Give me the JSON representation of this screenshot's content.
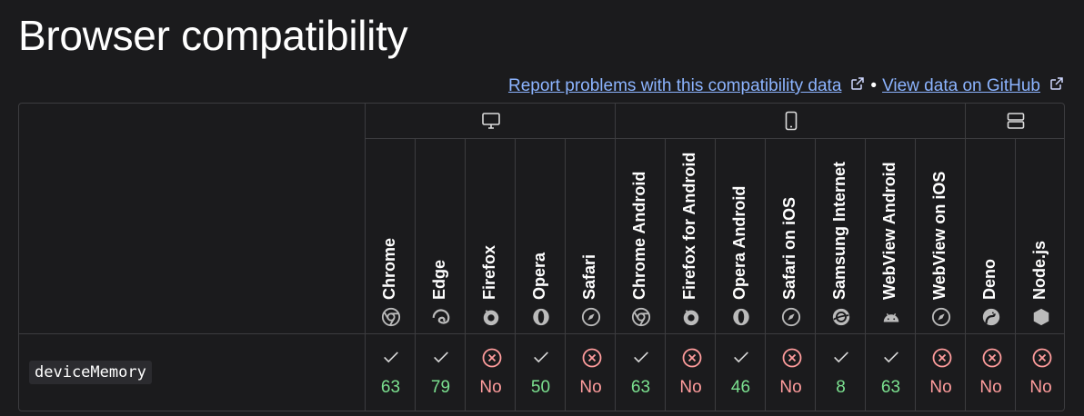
{
  "title": "Browser compatibility",
  "links": {
    "report": "Report problems with this compatibility data",
    "separator": "•",
    "github": "View data on GitHub"
  },
  "groups": [
    {
      "name": "desktop",
      "icon": "desktop-icon"
    },
    {
      "name": "mobile",
      "icon": "mobile-icon"
    },
    {
      "name": "server",
      "icon": "server-icon"
    }
  ],
  "browsers": [
    {
      "name": "Chrome",
      "icon": "chrome-icon",
      "version": "63",
      "supported": true
    },
    {
      "name": "Edge",
      "icon": "edge-icon",
      "version": "79",
      "supported": true
    },
    {
      "name": "Firefox",
      "icon": "firefox-icon",
      "version": "No",
      "supported": false
    },
    {
      "name": "Opera",
      "icon": "opera-icon",
      "version": "50",
      "supported": true
    },
    {
      "name": "Safari",
      "icon": "safari-icon",
      "version": "No",
      "supported": false
    },
    {
      "name": "Chrome Android",
      "icon": "chrome-icon",
      "version": "63",
      "supported": true
    },
    {
      "name": "Firefox for Android",
      "icon": "firefox-icon",
      "version": "No",
      "supported": false
    },
    {
      "name": "Opera Android",
      "icon": "opera-icon",
      "version": "46",
      "supported": true
    },
    {
      "name": "Safari on iOS",
      "icon": "safari-icon",
      "version": "No",
      "supported": false
    },
    {
      "name": "Samsung Internet",
      "icon": "samsung-internet-icon",
      "version": "8",
      "supported": true
    },
    {
      "name": "WebView Android",
      "icon": "android-icon",
      "version": "63",
      "supported": true
    },
    {
      "name": "WebView on iOS",
      "icon": "safari-icon",
      "version": "No",
      "supported": false
    },
    {
      "name": "Deno",
      "icon": "deno-icon",
      "version": "No",
      "supported": false
    },
    {
      "name": "Node.js",
      "icon": "nodejs-icon",
      "version": "No",
      "supported": false
    }
  ],
  "feature": "deviceMemory",
  "colors": {
    "background": "#1b1b1d",
    "link": "#8cb4ff",
    "supported": "#7be08f",
    "unsupported": "#ff9c9c",
    "border": "#3c3c3f"
  }
}
